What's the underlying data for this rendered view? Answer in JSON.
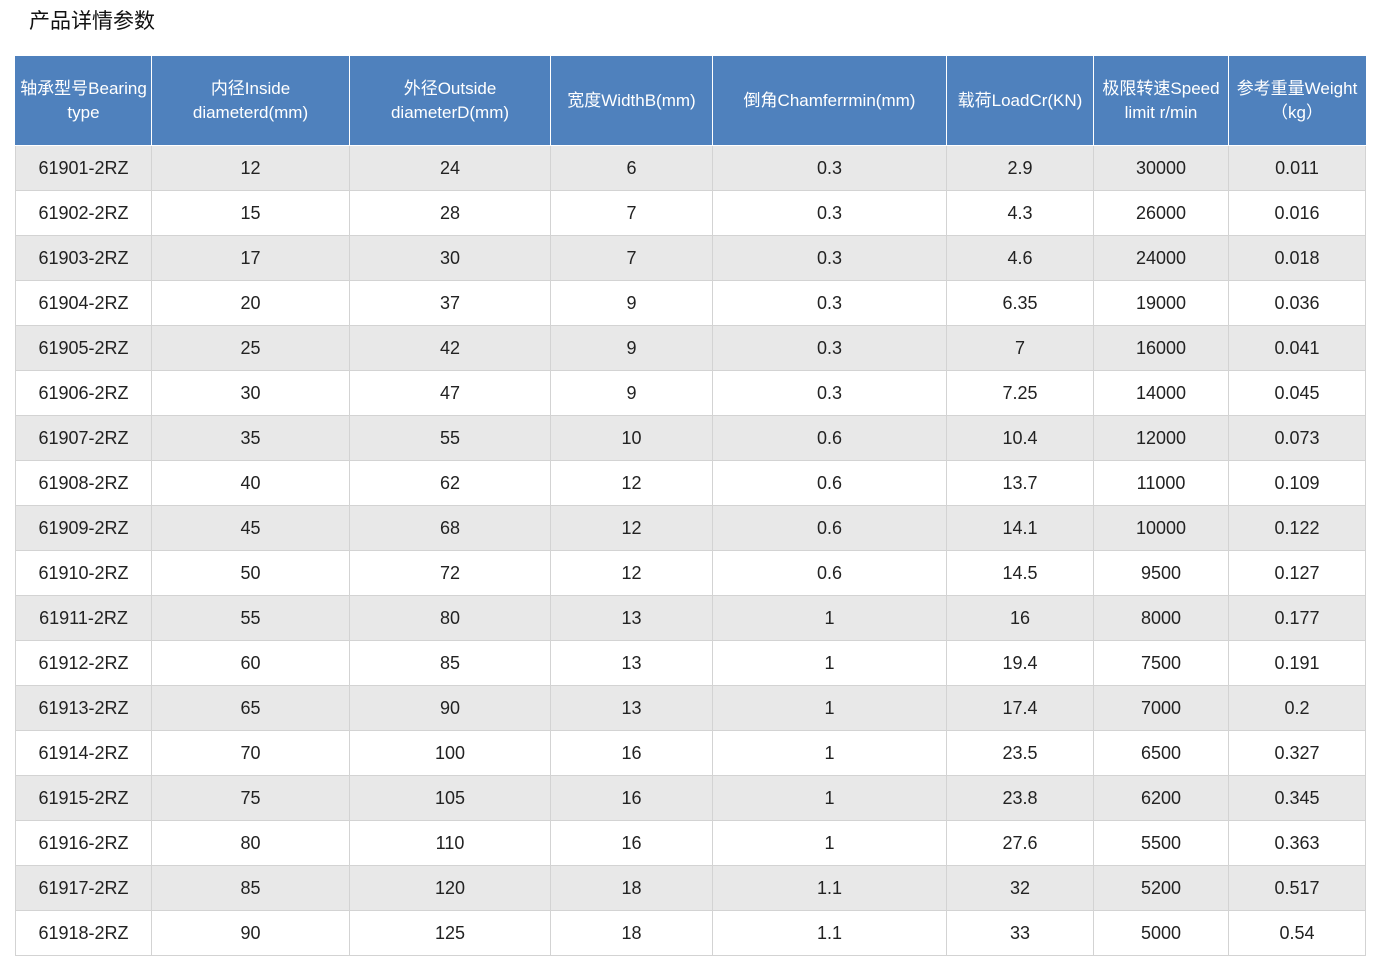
{
  "page": {
    "title": "产品详情参数"
  },
  "table": {
    "headers": [
      "轴承型号Bearing type",
      "内径Inside diameterd(mm)",
      "外径Outside diameterD(mm)",
      "宽度WidthB(mm)",
      "倒角Chamferrmin(mm)",
      "载荷LoadCr(KN)",
      "极限转速Speed limit r/min",
      "参考重量Weight（kg）"
    ],
    "rows": [
      [
        "61901-2RZ",
        "12",
        "24",
        "6",
        "0.3",
        "2.9",
        "30000",
        "0.011"
      ],
      [
        "61902-2RZ",
        "15",
        "28",
        "7",
        "0.3",
        "4.3",
        "26000",
        "0.016"
      ],
      [
        "61903-2RZ",
        "17",
        "30",
        "7",
        "0.3",
        "4.6",
        "24000",
        "0.018"
      ],
      [
        "61904-2RZ",
        "20",
        "37",
        "9",
        "0.3",
        "6.35",
        "19000",
        "0.036"
      ],
      [
        "61905-2RZ",
        "25",
        "42",
        "9",
        "0.3",
        "7",
        "16000",
        "0.041"
      ],
      [
        "61906-2RZ",
        "30",
        "47",
        "9",
        "0.3",
        "7.25",
        "14000",
        "0.045"
      ],
      [
        "61907-2RZ",
        "35",
        "55",
        "10",
        "0.6",
        "10.4",
        "12000",
        "0.073"
      ],
      [
        "61908-2RZ",
        "40",
        "62",
        "12",
        "0.6",
        "13.7",
        "11000",
        "0.109"
      ],
      [
        "61909-2RZ",
        "45",
        "68",
        "12",
        "0.6",
        "14.1",
        "10000",
        "0.122"
      ],
      [
        "61910-2RZ",
        "50",
        "72",
        "12",
        "0.6",
        "14.5",
        "9500",
        "0.127"
      ],
      [
        "61911-2RZ",
        "55",
        "80",
        "13",
        "1",
        "16",
        "8000",
        "0.177"
      ],
      [
        "61912-2RZ",
        "60",
        "85",
        "13",
        "1",
        "19.4",
        "7500",
        "0.191"
      ],
      [
        "61913-2RZ",
        "65",
        "90",
        "13",
        "1",
        "17.4",
        "7000",
        "0.2"
      ],
      [
        "61914-2RZ",
        "70",
        "100",
        "16",
        "1",
        "23.5",
        "6500",
        "0.327"
      ],
      [
        "61915-2RZ",
        "75",
        "105",
        "16",
        "1",
        "23.8",
        "6200",
        "0.345"
      ],
      [
        "61916-2RZ",
        "80",
        "110",
        "16",
        "1",
        "27.6",
        "5500",
        "0.363"
      ],
      [
        "61917-2RZ",
        "85",
        "120",
        "18",
        "1.1",
        "32",
        "5200",
        "0.517"
      ],
      [
        "61918-2RZ",
        "90",
        "125",
        "18",
        "1.1",
        "33",
        "5000",
        "0.54"
      ]
    ]
  },
  "colors": {
    "header_background": "#4f81bd",
    "header_text": "#ffffff",
    "row_odd_background": "#e8e8e8",
    "row_even_background": "#ffffff",
    "grid_line": "#d3d3d3"
  }
}
